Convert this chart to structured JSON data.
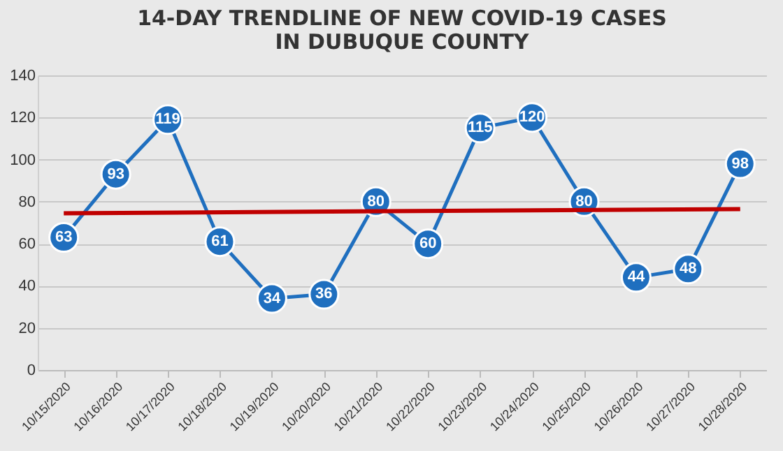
{
  "chart_data": {
    "type": "line",
    "title": "14-DAY TRENDLINE OF NEW COVID-19 CASES\nIN DUBUQUE COUNTY",
    "categories": [
      "10/15/2020",
      "10/16/2020",
      "10/17/2020",
      "10/18/2020",
      "10/19/2020",
      "10/20/2020",
      "10/21/2020",
      "10/22/2020",
      "10/23/2020",
      "10/24/2020",
      "10/25/2020",
      "10/26/2020",
      "10/27/2020",
      "10/28/2020"
    ],
    "series": [
      {
        "color": "#1f6fbf",
        "values": [
          63,
          93,
          119,
          61,
          34,
          36,
          80,
          60,
          115,
          120,
          80,
          44,
          48,
          98
        ],
        "value_labels": [
          "63",
          "93",
          "119",
          "61",
          "34",
          "36",
          "80",
          "60",
          "115",
          "120",
          "80",
          "44",
          "48",
          "98"
        ]
      },
      {
        "type": "line",
        "color": "#c00000",
        "x": [
          "10/15/2020",
          "10/28/2020"
        ],
        "values": [
          74.5,
          76.5
        ],
        "marker": "none"
      }
    ],
    "ylim": [
      0,
      140
    ],
    "yticks": [
      0,
      20,
      40,
      60,
      80,
      100,
      120,
      140
    ],
    "grid": "y",
    "marker": "circle",
    "line_style": "solid"
  }
}
